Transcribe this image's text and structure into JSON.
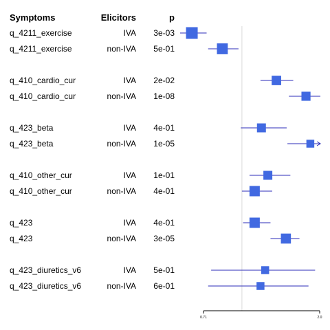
{
  "chart_data": {
    "type": "forest",
    "columns": [
      "Symptoms",
      "Elicitors",
      "p"
    ],
    "rows": [
      {
        "symptom": "q_4211_exercise",
        "elicitor": "IVA",
        "p": "3e-03",
        "estimate": 0.64,
        "ci": [
          0.57,
          0.73
        ],
        "weight": 1.0
      },
      {
        "symptom": "q_4211_exercise",
        "elicitor": "non-IVA",
        "p": "5e-01",
        "estimate": 0.84,
        "ci": [
          0.74,
          0.97
        ],
        "weight": 0.88
      },
      {
        "symptom": "q_410_cardio_cur",
        "elicitor": "IVA",
        "p": "2e-02",
        "estimate": 1.36,
        "ci": [
          1.18,
          1.58
        ],
        "weight": 0.68
      },
      {
        "symptom": "q_410_cardio_cur",
        "elicitor": "non-IVA",
        "p": "1e-08",
        "estimate": 1.77,
        "ci": [
          1.52,
          2.05
        ],
        "weight": 0.62
      },
      {
        "symptom": "q_423_beta",
        "elicitor": "IVA",
        "p": "4e-01",
        "estimate": 1.19,
        "ci": [
          0.99,
          1.49
        ],
        "weight": 0.6
      },
      {
        "symptom": "q_423_beta",
        "elicitor": "non-IVA",
        "p": "1e-05",
        "estimate": 1.84,
        "ci": [
          1.5,
          2.05
        ],
        "weight": 0.45,
        "arrow_right": true
      },
      {
        "symptom": "q_410_other_cur",
        "elicitor": "IVA",
        "p": "1e-01",
        "estimate": 1.26,
        "ci": [
          1.07,
          1.54
        ],
        "weight": 0.6
      },
      {
        "symptom": "q_410_other_cur",
        "elicitor": "non-IVA",
        "p": "4e-01",
        "estimate": 1.12,
        "ci": [
          1.0,
          1.31
        ],
        "weight": 0.8
      },
      {
        "symptom": "q_423",
        "elicitor": "IVA",
        "p": "4e-01",
        "estimate": 1.12,
        "ci": [
          1.01,
          1.29
        ],
        "weight": 0.8
      },
      {
        "symptom": "q_423",
        "elicitor": "non-IVA",
        "p": "3e-05",
        "estimate": 1.48,
        "ci": [
          1.29,
          1.67
        ],
        "weight": 0.76
      },
      {
        "symptom": "q_423_diuretics_v6",
        "elicitor": "IVA",
        "p": "5e-01",
        "estimate": 1.23,
        "ci": [
          0.76,
          1.92
        ],
        "weight": 0.45
      },
      {
        "symptom": "q_423_diuretics_v6",
        "elicitor": "non-IVA",
        "p": "6e-01",
        "estimate": 1.18,
        "ci": [
          0.74,
          1.81
        ],
        "weight": 0.45
      }
    ],
    "groups": [
      [
        0,
        1
      ],
      [
        2,
        3
      ],
      [
        4,
        5
      ],
      [
        6,
        7
      ],
      [
        8,
        9
      ],
      [
        10,
        11
      ]
    ],
    "x_scale": "log",
    "xlim": [
      0.71,
      2.0
    ],
    "x_ticks": [
      "0.71",
      "2.0"
    ],
    "reference_value": 1.0,
    "colors": {
      "marker": "#4169e1",
      "ci_line": "#2b2bb8",
      "reference_line": "#d9d9d9",
      "axis": "#000000"
    }
  }
}
